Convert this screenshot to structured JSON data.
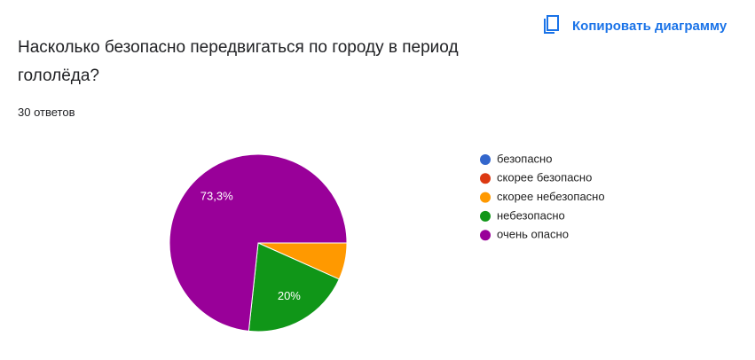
{
  "chart_data": {
    "type": "pie",
    "title": "Насколько безопасно передвигаться по городу в период гололёда?",
    "subtitle": "30 ответов",
    "button": "Копировать диаграмму",
    "categories": [
      "безопасно",
      "скорее безопасно",
      "скорее небезопасно",
      "небезопасно",
      "очень опасно"
    ],
    "values": [
      0,
      0,
      6.7,
      20,
      73.3
    ],
    "value_labels": [
      null,
      null,
      null,
      "20%",
      "73,3%"
    ],
    "colors": [
      "#3366cc",
      "#dc3912",
      "#ff9900",
      "#109618",
      "#990099"
    ],
    "legend": "right"
  }
}
